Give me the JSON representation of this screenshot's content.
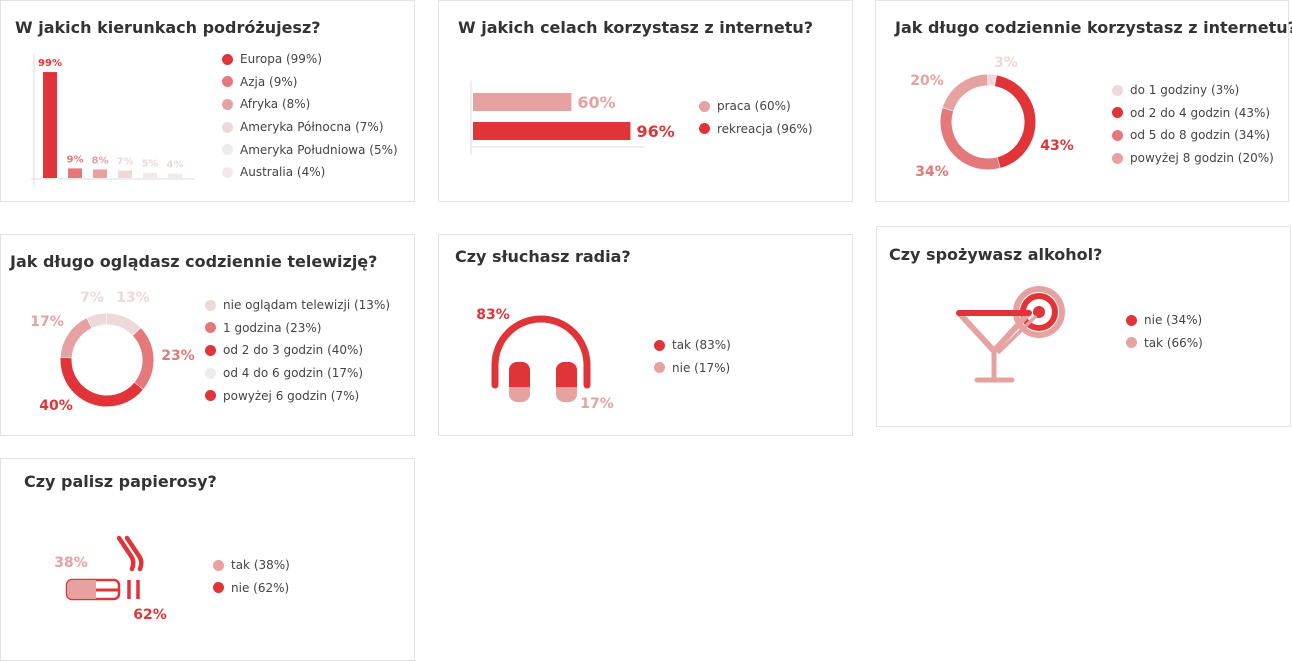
{
  "colors": {
    "red": "#e03438",
    "mid": "#e5787a",
    "pink": "#e6a2a1",
    "light": "#ecd9d9",
    "pale": "#f0eaea",
    "axis": "#dddddd"
  },
  "chart_data": [
    {
      "id": "directions",
      "type": "bar",
      "title": "W jakich kierunkach podróżujesz?",
      "categories": [
        "Europa",
        "Azja",
        "Afryka",
        "Ameryka Północna",
        "Ameryka Południowa",
        "Australia"
      ],
      "values": [
        99,
        9,
        8,
        7,
        5,
        4
      ],
      "value_labels": [
        "99%",
        "9%",
        "8%",
        "7%",
        "5%",
        "4%"
      ],
      "legend": [
        "Europa (99%)",
        "Azja (9%)",
        "Afryka (8%)",
        "Ameryka Północna (7%)",
        "Ameryka Południowa (5%)",
        "Australia (4%)"
      ],
      "colors": [
        "#e03438",
        "#e5787a",
        "#e6a2a1",
        "#ecd9d9",
        "#f0eaea",
        "#f0eaea"
      ],
      "label_colors": [
        "#e03438",
        "#e5787a",
        "#e6a2a1",
        "#ecd9d9",
        "#ecd9d9",
        "#ecd9d9"
      ],
      "ylim": [
        0,
        100
      ]
    },
    {
      "id": "internet-purpose",
      "type": "bar",
      "orientation": "horizontal",
      "title": "W jakich celach korzystasz z internetu?",
      "categories": [
        "praca",
        "rekreacja"
      ],
      "values": [
        60,
        96
      ],
      "value_labels": [
        "60%",
        "96%"
      ],
      "legend": [
        "praca (60%)",
        "rekreacja (96%)"
      ],
      "colors": [
        "#e6a2a1",
        "#e03438"
      ],
      "xlim": [
        0,
        100
      ]
    },
    {
      "id": "internet-time",
      "type": "pie",
      "style": "donut",
      "title": "Jak długo codziennie korzystasz z internetu?",
      "categories": [
        "do 1 godziny",
        "od 2 do 4 godzin",
        "od 5 do 8 godzin",
        "powyżej 8 godzin"
      ],
      "values": [
        3,
        43,
        34,
        20
      ],
      "value_labels": [
        "3%",
        "43%",
        "34%",
        "20%"
      ],
      "legend": [
        "do 1 godziny (3%)",
        "od 2 do 4 godzin (43%)",
        "od 5 do 8 godzin (34%)",
        "powyżej 8 godzin (20%)"
      ],
      "colors": [
        "#ecd9d9",
        "#e03438",
        "#e5787a",
        "#e6a2a1"
      ]
    },
    {
      "id": "tv-time",
      "type": "pie",
      "style": "donut",
      "title": "Jak długo oglądasz codziennie telewizję?",
      "categories": [
        "nie oglądam telewizji",
        "1 godzina",
        "od 2 do 3 godzin",
        "od 4 do 6 godzin",
        "powyżej 6 godzin"
      ],
      "values": [
        13,
        23,
        40,
        17,
        7
      ],
      "value_labels": [
        "13%",
        "23%",
        "40%",
        "17%",
        "7%"
      ],
      "legend": [
        "nie oglądam telewizji (13%)",
        "1 godzina (23%)",
        "od 2 do 3 godzin (40%)",
        "od 4 do 6 godzin (17%)",
        "powyżej 6 godzin (7%)"
      ],
      "colors": [
        "#ecd9d9",
        "#e5787a",
        "#e03438",
        "#e6a2a1",
        "#ecd9d9"
      ],
      "legend_colors": [
        "#ecd9d9",
        "#e5787a",
        "#e03438",
        "#f0eaea",
        "#e03438"
      ]
    },
    {
      "id": "radio",
      "type": "pie",
      "style": "icon-headphones",
      "title": "Czy słuchasz radia?",
      "categories": [
        "tak",
        "nie"
      ],
      "values": [
        83,
        17
      ],
      "value_labels": [
        "83%",
        "17%"
      ],
      "legend": [
        "tak (83%)",
        "nie (17%)"
      ],
      "colors": [
        "#e03438",
        "#e6a2a1"
      ]
    },
    {
      "id": "alcohol",
      "type": "pie",
      "style": "icon-cocktail",
      "title": "Czy spożywasz alkohol?",
      "categories": [
        "nie",
        "tak"
      ],
      "values": [
        34,
        66
      ],
      "legend": [
        "nie (34%)",
        "tak (66%)"
      ],
      "colors": [
        "#e03438",
        "#e6a2a1"
      ]
    },
    {
      "id": "smoking",
      "type": "pie",
      "style": "icon-cigarette",
      "title": "Czy palisz papierosy?",
      "categories": [
        "tak",
        "nie"
      ],
      "values": [
        38,
        62
      ],
      "value_labels": [
        "38%",
        "62%"
      ],
      "legend": [
        "tak (38%)",
        "nie (62%)"
      ],
      "colors": [
        "#e6a2a1",
        "#e03438"
      ]
    }
  ]
}
